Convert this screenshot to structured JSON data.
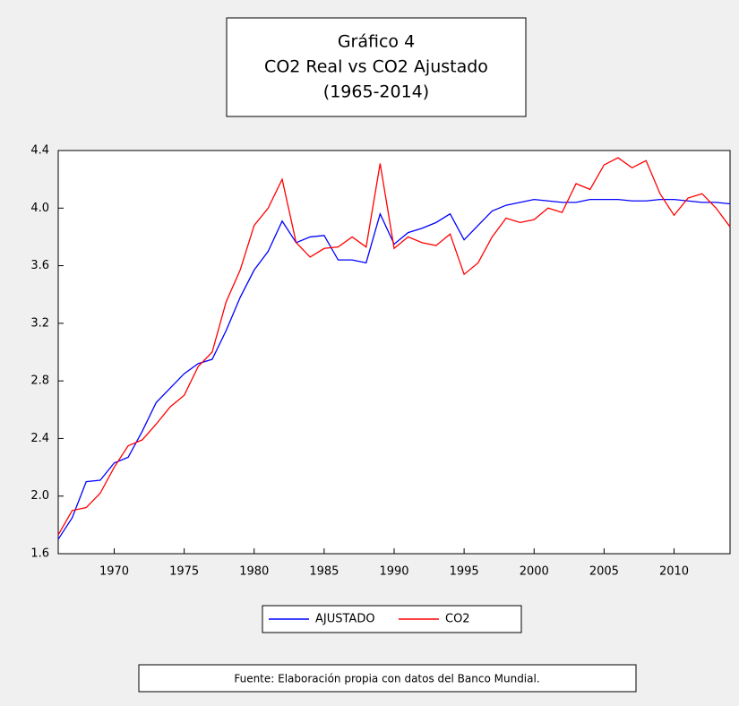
{
  "chart_data": {
    "type": "line",
    "title": [
      "Gráfico 4",
      "CO2 Real vs CO2 Ajustado",
      "(1965-2014)"
    ],
    "source": "Fuente: Elaboración propia con datos del Banco Mundial.",
    "x": [
      1966,
      1967,
      1968,
      1969,
      1970,
      1971,
      1972,
      1973,
      1974,
      1975,
      1976,
      1977,
      1978,
      1979,
      1980,
      1981,
      1982,
      1983,
      1984,
      1985,
      1986,
      1987,
      1988,
      1989,
      1990,
      1991,
      1992,
      1993,
      1994,
      1995,
      1996,
      1997,
      1998,
      1999,
      2000,
      2001,
      2002,
      2003,
      2004,
      2005,
      2006,
      2007,
      2008,
      2009,
      2010,
      2011,
      2012,
      2013,
      2014
    ],
    "series": [
      {
        "name": "AJUSTADO",
        "color": "#0000ff",
        "values": [
          1.7,
          1.85,
          2.1,
          2.11,
          2.23,
          2.27,
          2.45,
          2.65,
          2.75,
          2.85,
          2.92,
          2.95,
          3.15,
          3.38,
          3.57,
          3.7,
          3.91,
          3.76,
          3.8,
          3.81,
          3.64,
          3.64,
          3.62,
          3.96,
          3.75,
          3.83,
          3.86,
          3.9,
          3.96,
          3.78,
          3.88,
          3.98,
          4.02,
          4.04,
          4.06,
          4.05,
          4.04,
          4.04,
          4.06,
          4.06,
          4.06,
          4.05,
          4.05,
          4.06,
          4.06,
          4.05,
          4.04,
          4.04,
          4.03
        ]
      },
      {
        "name": "CO2",
        "color": "#ff0000",
        "values": [
          1.73,
          1.9,
          1.92,
          2.02,
          2.2,
          2.35,
          2.39,
          2.5,
          2.62,
          2.7,
          2.9,
          3.0,
          3.35,
          3.57,
          3.88,
          4.0,
          4.2,
          3.76,
          3.66,
          3.72,
          3.73,
          3.8,
          3.73,
          4.31,
          3.72,
          3.8,
          3.76,
          3.74,
          3.82,
          3.54,
          3.62,
          3.8,
          3.93,
          3.9,
          3.92,
          4.0,
          3.97,
          4.17,
          4.13,
          4.3,
          4.35,
          4.28,
          4.33,
          4.1,
          3.95,
          4.07,
          4.1,
          4.0,
          3.87
        ]
      }
    ],
    "xlim": [
      1966,
      2014
    ],
    "xticks": [
      1970,
      1975,
      1980,
      1985,
      1990,
      1995,
      2000,
      2005,
      2010
    ],
    "ylim": [
      1.6,
      4.4
    ],
    "yticks": [
      1.6,
      {
        "value": 2,
        "label": "2.0"
      },
      2.4,
      2.8,
      3.2,
      3.6,
      {
        "value": 4,
        "label": "4.0"
      },
      4.4
    ],
    "grid": false
  }
}
